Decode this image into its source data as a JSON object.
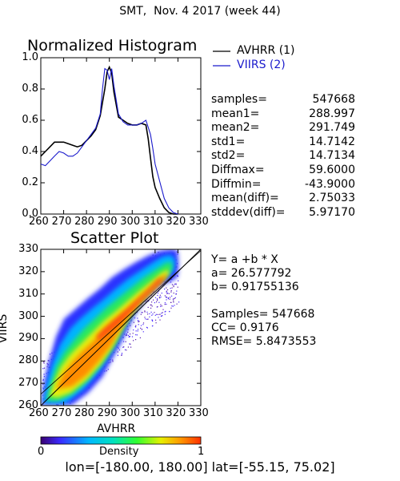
{
  "page_title": "SMT,  Nov. 4 2017 (week 44)",
  "histogram": {
    "title": "Normalized Histogram",
    "legend": [
      {
        "name": "AVHRR (1)",
        "color": "#000000"
      },
      {
        "name": "VIIRS (2)",
        "color": "#1a1acc"
      }
    ],
    "x_ticks": [
      "260",
      "270",
      "280",
      "290",
      "300",
      "310",
      "320",
      "330"
    ],
    "y_ticks": [
      "0.0",
      "0.2",
      "0.4",
      "0.6",
      "0.8",
      "1.0"
    ]
  },
  "stats": [
    {
      "label": "samples=",
      "value": "547668"
    },
    {
      "label": "mean1=",
      "value": "288.997"
    },
    {
      "label": "mean2=",
      "value": "291.749"
    },
    {
      "label": "std1=",
      "value": "14.7142"
    },
    {
      "label": "std2=",
      "value": "14.7134"
    },
    {
      "label": "Diffmax=",
      "value": "59.6000"
    },
    {
      "label": "Diffmin=",
      "value": "-43.9000"
    },
    {
      "label": "mean(diff)=",
      "value": "2.75033"
    },
    {
      "label": "stddev(diff)=",
      "value": "5.97170"
    }
  ],
  "scatter": {
    "title": "Scatter Plot",
    "xlabel": "AVHRR",
    "ylabel": "VIIRS",
    "x_ticks": [
      "260",
      "270",
      "280",
      "290",
      "300",
      "310",
      "320",
      "330"
    ],
    "y_ticks": [
      "260",
      "270",
      "280",
      "290",
      "300",
      "310",
      "320",
      "330"
    ]
  },
  "regression": {
    "equation": "Y= a +b * X",
    "a": "a= 26.577792",
    "b": "b= 0.91755136",
    "samples": "Samples= 547668",
    "cc": "CC=  0.9176",
    "rmse": "RMSE= 5.8473553"
  },
  "colorbar": {
    "label": "Density",
    "min_label": "0",
    "max_label": "1"
  },
  "footer": "lon=[-180.00, 180.00] lat=[-55.15, 75.02]",
  "chart_data": [
    {
      "type": "line",
      "title": "Normalized Histogram",
      "xlim": [
        260,
        330
      ],
      "ylim": [
        0,
        1
      ],
      "series": [
        {
          "name": "AVHRR (1)",
          "color": "#000000",
          "points": [
            [
              260,
              0.37
            ],
            [
              262,
              0.4
            ],
            [
              264,
              0.43
            ],
            [
              266,
              0.46
            ],
            [
              268,
              0.46
            ],
            [
              270,
              0.46
            ],
            [
              272,
              0.45
            ],
            [
              274,
              0.44
            ],
            [
              276,
              0.43
            ],
            [
              278,
              0.44
            ],
            [
              280,
              0.47
            ],
            [
              282,
              0.5
            ],
            [
              284,
              0.54
            ],
            [
              286,
              0.63
            ],
            [
              288,
              0.8
            ],
            [
              289,
              0.91
            ],
            [
              290,
              0.94
            ],
            [
              291,
              0.9
            ],
            [
              292,
              0.78
            ],
            [
              294,
              0.62
            ],
            [
              296,
              0.6
            ],
            [
              298,
              0.58
            ],
            [
              300,
              0.57
            ],
            [
              302,
              0.57
            ],
            [
              304,
              0.58
            ],
            [
              306,
              0.57
            ],
            [
              307,
              0.48
            ],
            [
              308,
              0.36
            ],
            [
              309,
              0.24
            ],
            [
              310,
              0.17
            ],
            [
              312,
              0.1
            ],
            [
              314,
              0.04
            ],
            [
              316,
              0.01
            ],
            [
              318,
              0.0
            ],
            [
              320,
              0.0
            ]
          ]
        },
        {
          "name": "VIIRS (2)",
          "color": "#1a1acc",
          "points": [
            [
              260,
              0.32
            ],
            [
              262,
              0.31
            ],
            [
              264,
              0.34
            ],
            [
              266,
              0.37
            ],
            [
              268,
              0.4
            ],
            [
              270,
              0.39
            ],
            [
              272,
              0.37
            ],
            [
              274,
              0.37
            ],
            [
              276,
              0.39
            ],
            [
              278,
              0.43
            ],
            [
              280,
              0.47
            ],
            [
              282,
              0.51
            ],
            [
              284,
              0.55
            ],
            [
              286,
              0.64
            ],
            [
              287,
              0.8
            ],
            [
              288,
              0.93
            ],
            [
              289,
              0.92
            ],
            [
              290,
              0.86
            ],
            [
              291,
              0.93
            ],
            [
              292,
              0.82
            ],
            [
              294,
              0.64
            ],
            [
              296,
              0.59
            ],
            [
              298,
              0.57
            ],
            [
              300,
              0.57
            ],
            [
              302,
              0.57
            ],
            [
              304,
              0.58
            ],
            [
              306,
              0.6
            ],
            [
              308,
              0.51
            ],
            [
              309,
              0.42
            ],
            [
              310,
              0.32
            ],
            [
              312,
              0.21
            ],
            [
              314,
              0.1
            ],
            [
              316,
              0.04
            ],
            [
              318,
              0.01
            ],
            [
              320,
              0.0
            ]
          ]
        }
      ]
    },
    {
      "type": "heatmap",
      "title": "Scatter Plot",
      "xlabel": "AVHRR",
      "ylabel": "VIIRS",
      "xlim": [
        260,
        330
      ],
      "ylim": [
        260,
        330
      ],
      "regression": {
        "a": 26.577792,
        "b": 0.91755136
      },
      "one_to_one_line": true,
      "density_colorbar": {
        "label": "Density",
        "range": [
          0,
          1
        ]
      }
    }
  ]
}
